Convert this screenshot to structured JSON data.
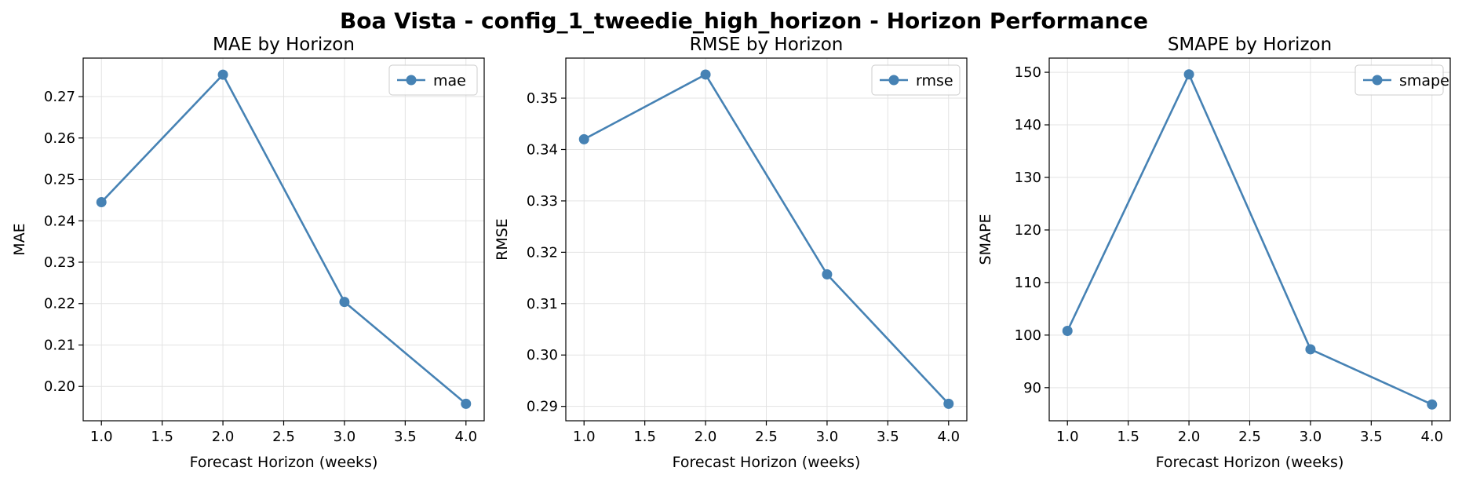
{
  "figure": {
    "title": "Boa Vista - config_1_tweedie_high_horizon - Horizon Performance",
    "line_color": "#4682b4"
  },
  "chart_data": [
    {
      "type": "line",
      "title": "MAE by Horizon",
      "xlabel": "Forecast Horizon (weeks)",
      "ylabel": "MAE",
      "x": [
        1.0,
        2.0,
        3.0,
        4.0
      ],
      "series": [
        {
          "name": "mae",
          "values": [
            0.2445,
            0.2753,
            0.2204,
            0.1958
          ]
        }
      ],
      "xlim": [
        0.85,
        4.15
      ],
      "ylim": [
        0.1917,
        0.2793
      ],
      "xticks": [
        1.0,
        1.5,
        2.0,
        2.5,
        3.0,
        3.5,
        4.0
      ],
      "xtick_labels": [
        "1.0",
        "1.5",
        "2.0",
        "2.5",
        "3.0",
        "3.5",
        "4.0"
      ],
      "yticks": [
        0.2,
        0.21,
        0.22,
        0.23,
        0.24,
        0.25,
        0.26,
        0.27
      ],
      "ytick_labels": [
        "0.20",
        "0.21",
        "0.22",
        "0.23",
        "0.24",
        "0.25",
        "0.26",
        "0.27"
      ],
      "grid": true,
      "legend": "upper right"
    },
    {
      "type": "line",
      "title": "RMSE by Horizon",
      "xlabel": "Forecast Horizon (weeks)",
      "ylabel": "RMSE",
      "x": [
        1.0,
        2.0,
        3.0,
        4.0
      ],
      "series": [
        {
          "name": "rmse",
          "values": [
            0.342,
            0.3546,
            0.3157,
            0.2905
          ]
        }
      ],
      "xlim": [
        0.85,
        4.15
      ],
      "ylim": [
        0.2872,
        0.3578
      ],
      "xticks": [
        1.0,
        1.5,
        2.0,
        2.5,
        3.0,
        3.5,
        4.0
      ],
      "xtick_labels": [
        "1.0",
        "1.5",
        "2.0",
        "2.5",
        "3.0",
        "3.5",
        "4.0"
      ],
      "yticks": [
        0.29,
        0.3,
        0.31,
        0.32,
        0.33,
        0.34,
        0.35
      ],
      "ytick_labels": [
        "0.29",
        "0.30",
        "0.31",
        "0.32",
        "0.33",
        "0.34",
        "0.35"
      ],
      "grid": true,
      "legend": "upper right"
    },
    {
      "type": "line",
      "title": "SMAPE by Horizon",
      "xlabel": "Forecast Horizon (weeks)",
      "ylabel": "SMAPE",
      "x": [
        1.0,
        2.0,
        3.0,
        4.0
      ],
      "series": [
        {
          "name": "smape",
          "values": [
            100.8,
            149.6,
            97.3,
            86.8
          ]
        }
      ],
      "xlim": [
        0.85,
        4.15
      ],
      "ylim": [
        83.7,
        152.7
      ],
      "xticks": [
        1.0,
        1.5,
        2.0,
        2.5,
        3.0,
        3.5,
        4.0
      ],
      "xtick_labels": [
        "1.0",
        "1.5",
        "2.0",
        "2.5",
        "3.0",
        "3.5",
        "4.0"
      ],
      "yticks": [
        90,
        100,
        110,
        120,
        130,
        140,
        150
      ],
      "ytick_labels": [
        "90",
        "100",
        "110",
        "120",
        "130",
        "140",
        "150"
      ],
      "grid": true,
      "legend": "upper right"
    }
  ]
}
